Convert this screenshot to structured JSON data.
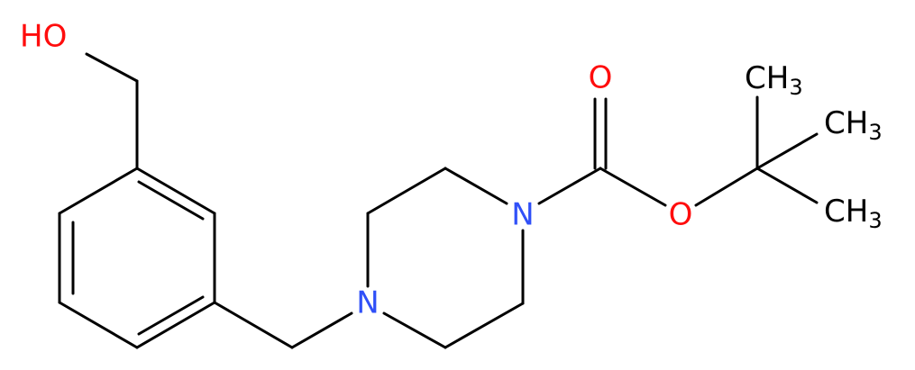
{
  "atoms": [
    {
      "label": "HO"
    },
    {
      "label": "N"
    },
    {
      "label": "N"
    },
    {
      "label": "O"
    },
    {
      "label": "O"
    },
    {
      "label": "CH",
      "sub": "3"
    },
    {
      "label": "CH",
      "sub": "3"
    },
    {
      "label": "CH",
      "sub": "3"
    }
  ]
}
